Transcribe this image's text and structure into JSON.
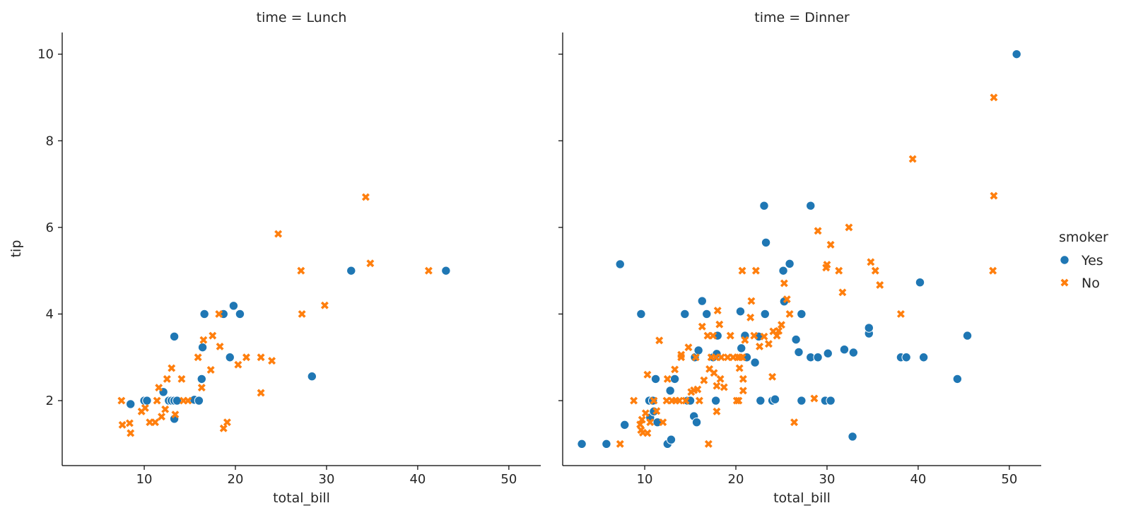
{
  "chart_data": {
    "type": "scatter",
    "x_var": "total_bill",
    "y_var": "tip",
    "xlabel": "total_bill",
    "ylabel": "tip",
    "xlim": [
      1,
      53.5
    ],
    "ylim": [
      0.5,
      10.5
    ],
    "xticks": [
      10,
      20,
      30,
      40,
      50
    ],
    "yticks": [
      2,
      4,
      6,
      8,
      10
    ],
    "grid": false,
    "sharey": true,
    "legend": {
      "title": "smoker",
      "placement": "right",
      "entries": [
        {
          "label": "Yes",
          "marker": "circle",
          "color": "#1f77b4"
        },
        {
          "label": "No",
          "marker": "x",
          "color": "#ff7f0e"
        }
      ]
    },
    "facets": [
      {
        "title": "time = Lunch",
        "series": [
          {
            "name": "Yes",
            "marker": "circle",
            "color": "#1f77b4",
            "points": [
              [
                8.5,
                1.92
              ],
              [
                10.0,
                2.0
              ],
              [
                10.3,
                2.0
              ],
              [
                12.1,
                2.2
              ],
              [
                12.7,
                2.0
              ],
              [
                13.0,
                2.0
              ],
              [
                13.3,
                2.0
              ],
              [
                13.6,
                2.0
              ],
              [
                13.3,
                1.58
              ],
              [
                13.3,
                3.48
              ],
              [
                15.5,
                2.02
              ],
              [
                16.0,
                2.0
              ],
              [
                16.3,
                2.5
              ],
              [
                16.4,
                3.23
              ],
              [
                16.6,
                4.0
              ],
              [
                18.7,
                4.0
              ],
              [
                19.4,
                3.0
              ],
              [
                19.8,
                4.19
              ],
              [
                20.5,
                4.0
              ],
              [
                28.4,
                2.56
              ],
              [
                32.7,
                5.0
              ],
              [
                43.1,
                5.0
              ]
            ]
          },
          {
            "name": "No",
            "marker": "x",
            "color": "#ff7f0e",
            "points": [
              [
                7.5,
                2.0
              ],
              [
                7.6,
                1.44
              ],
              [
                8.4,
                1.48
              ],
              [
                8.5,
                1.25
              ],
              [
                9.7,
                1.75
              ],
              [
                10.1,
                1.83
              ],
              [
                10.6,
                1.5
              ],
              [
                11.2,
                1.5
              ],
              [
                11.4,
                2.0
              ],
              [
                11.6,
                2.3
              ],
              [
                11.9,
                1.63
              ],
              [
                12.3,
                1.8
              ],
              [
                12.5,
                2.5
              ],
              [
                13.0,
                2.75
              ],
              [
                13.4,
                1.68
              ],
              [
                14.1,
                2.5
              ],
              [
                14.3,
                2.0
              ],
              [
                14.8,
                2.0
              ],
              [
                15.9,
                3.0
              ],
              [
                16.3,
                2.3
              ],
              [
                16.5,
                3.4
              ],
              [
                17.3,
                2.71
              ],
              [
                17.5,
                3.5
              ],
              [
                18.2,
                4.0
              ],
              [
                18.3,
                3.25
              ],
              [
                18.7,
                1.36
              ],
              [
                19.1,
                1.5
              ],
              [
                20.3,
                2.83
              ],
              [
                21.2,
                3.0
              ],
              [
                22.8,
                2.18
              ],
              [
                22.8,
                3.0
              ],
              [
                24.0,
                2.92
              ],
              [
                24.7,
                5.85
              ],
              [
                27.2,
                5.0
              ],
              [
                27.3,
                4.0
              ],
              [
                29.8,
                4.2
              ],
              [
                34.3,
                6.7
              ],
              [
                34.8,
                5.17
              ],
              [
                41.2,
                5.0
              ]
            ]
          }
        ]
      },
      {
        "title": "time = Dinner",
        "series": [
          {
            "name": "Yes",
            "marker": "circle",
            "color": "#1f77b4",
            "points": [
              [
                3.1,
                1.0
              ],
              [
                5.8,
                1.0
              ],
              [
                7.3,
                5.15
              ],
              [
                7.8,
                1.44
              ],
              [
                9.6,
                4.0
              ],
              [
                10.5,
                2.0
              ],
              [
                10.6,
                1.61
              ],
              [
                10.9,
                2.0
              ],
              [
                11.0,
                1.75
              ],
              [
                11.2,
                2.5
              ],
              [
                11.4,
                1.5
              ],
              [
                12.5,
                1.0
              ],
              [
                12.8,
                2.23
              ],
              [
                12.9,
                1.1
              ],
              [
                13.3,
                2.5
              ],
              [
                14.4,
                4.0
              ],
              [
                14.7,
                2.0
              ],
              [
                15.0,
                2.0
              ],
              [
                15.4,
                1.64
              ],
              [
                15.5,
                3.0
              ],
              [
                15.7,
                1.5
              ],
              [
                15.9,
                3.16
              ],
              [
                16.3,
                4.3
              ],
              [
                16.8,
                4.0
              ],
              [
                17.5,
                3.0
              ],
              [
                17.8,
                2.0
              ],
              [
                17.9,
                3.08
              ],
              [
                18.0,
                3.5
              ],
              [
                20.5,
                4.06
              ],
              [
                20.6,
                3.21
              ],
              [
                21.0,
                3.5
              ],
              [
                21.2,
                3.0
              ],
              [
                22.1,
                2.88
              ],
              [
                22.5,
                3.48
              ],
              [
                22.7,
                2.0
              ],
              [
                23.1,
                6.5
              ],
              [
                23.2,
                4.0
              ],
              [
                23.3,
                5.65
              ],
              [
                24.0,
                2.0
              ],
              [
                24.3,
                2.03
              ],
              [
                25.2,
                5.0
              ],
              [
                25.3,
                4.29
              ],
              [
                25.9,
                5.16
              ],
              [
                27.2,
                4.0
              ],
              [
                26.6,
                3.41
              ],
              [
                26.9,
                3.12
              ],
              [
                27.2,
                2.0
              ],
              [
                28.2,
                6.5
              ],
              [
                28.2,
                3.0
              ],
              [
                29.0,
                3.0
              ],
              [
                29.8,
                2.0
              ],
              [
                30.1,
                3.09
              ],
              [
                30.4,
                2.0
              ],
              [
                31.9,
                3.18
              ],
              [
                32.8,
                1.17
              ],
              [
                32.9,
                3.11
              ],
              [
                34.6,
                3.55
              ],
              [
                34.6,
                3.68
              ],
              [
                38.1,
                3.0
              ],
              [
                38.7,
                3.0
              ],
              [
                40.2,
                4.73
              ],
              [
                40.6,
                3.0
              ],
              [
                44.3,
                2.5
              ],
              [
                45.4,
                3.5
              ],
              [
                50.8,
                10.0
              ]
            ]
          },
          {
            "name": "No",
            "marker": "x",
            "color": "#ff7f0e",
            "points": [
              [
                7.3,
                1.0
              ],
              [
                8.8,
                2.0
              ],
              [
                9.5,
                1.45
              ],
              [
                9.6,
                1.32
              ],
              [
                9.7,
                1.56
              ],
              [
                9.8,
                1.26
              ],
              [
                10.1,
                1.71
              ],
              [
                10.3,
                2.6
              ],
              [
                10.3,
                1.25
              ],
              [
                10.6,
                1.5
              ],
              [
                11.0,
                2.0
              ],
              [
                11.3,
                1.76
              ],
              [
                11.6,
                3.39
              ],
              [
                12.0,
                1.5
              ],
              [
                12.4,
                2.0
              ],
              [
                12.5,
                2.5
              ],
              [
                13.0,
                2.0
              ],
              [
                13.3,
                2.72
              ],
              [
                13.4,
                2.0
              ],
              [
                13.8,
                2.0
              ],
              [
                14.0,
                3.0
              ],
              [
                14.0,
                3.06
              ],
              [
                14.5,
                2.0
              ],
              [
                14.8,
                3.23
              ],
              [
                15.1,
                2.2
              ],
              [
                15.4,
                2.24
              ],
              [
                15.6,
                3.0
              ],
              [
                15.8,
                2.26
              ],
              [
                16.0,
                2.0
              ],
              [
                16.3,
                3.71
              ],
              [
                16.5,
                2.47
              ],
              [
                17.0,
                1.0
              ],
              [
                16.9,
                3.5
              ],
              [
                17.1,
                2.73
              ],
              [
                17.3,
                3.0
              ],
              [
                17.5,
                3.5
              ],
              [
                17.6,
                2.64
              ],
              [
                17.8,
                3.0
              ],
              [
                17.9,
                1.75
              ],
              [
                17.9,
                2.34
              ],
              [
                18.0,
                4.08
              ],
              [
                18.2,
                3.76
              ],
              [
                18.3,
                2.5
              ],
              [
                18.4,
                3.0
              ],
              [
                18.7,
                2.31
              ],
              [
                19.1,
                3.0
              ],
              [
                19.4,
                3.5
              ],
              [
                19.7,
                3.0
              ],
              [
                20.1,
                2.0
              ],
              [
                20.2,
                3.0
              ],
              [
                20.3,
                2.0
              ],
              [
                20.4,
                3.0
              ],
              [
                20.4,
                2.75
              ],
              [
                20.7,
                3.0
              ],
              [
                20.7,
                5.0
              ],
              [
                20.8,
                2.5
              ],
              [
                20.8,
                2.23
              ],
              [
                21.0,
                3.4
              ],
              [
                21.6,
                3.92
              ],
              [
                21.7,
                4.3
              ],
              [
                22.0,
                3.5
              ],
              [
                22.2,
                5.0
              ],
              [
                22.6,
                3.25
              ],
              [
                23.1,
                3.48
              ],
              [
                23.6,
                3.31
              ],
              [
                24.0,
                2.55
              ],
              [
                24.1,
                3.6
              ],
              [
                24.5,
                3.5
              ],
              [
                24.7,
                3.61
              ],
              [
                25.0,
                3.75
              ],
              [
                25.3,
                4.71
              ],
              [
                25.6,
                4.34
              ],
              [
                25.9,
                4.0
              ],
              [
                26.4,
                1.5
              ],
              [
                28.6,
                2.05
              ],
              [
                29.0,
                5.92
              ],
              [
                29.9,
                5.07
              ],
              [
                30.0,
                5.14
              ],
              [
                30.4,
                5.6
              ],
              [
                31.3,
                5.0
              ],
              [
                31.7,
                4.5
              ],
              [
                32.4,
                6.0
              ],
              [
                34.8,
                5.2
              ],
              [
                35.3,
                5.0
              ],
              [
                35.8,
                4.67
              ],
              [
                38.1,
                4.0
              ],
              [
                39.4,
                7.58
              ],
              [
                48.2,
                5.0
              ],
              [
                48.3,
                6.73
              ],
              [
                48.3,
                9.0
              ]
            ]
          }
        ]
      }
    ]
  }
}
